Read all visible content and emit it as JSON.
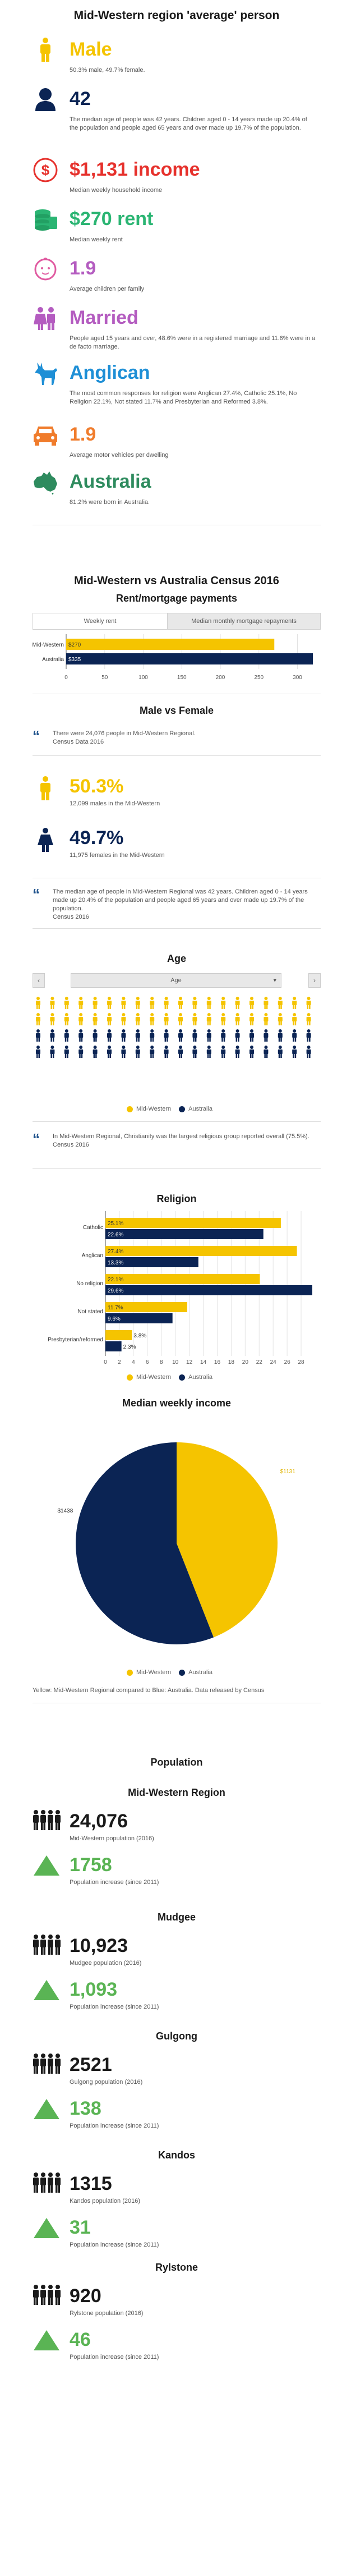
{
  "colors": {
    "yellow": "#f5c400",
    "navy": "#0b2454",
    "red": "#e6312c",
    "green": "#2bb573",
    "purple": "#b45cc0",
    "pink": "#e05aa0",
    "blue": "#1e8fd6",
    "orange": "#f07c2c",
    "teal": "#2e8b5e",
    "arrow": "#5ab454"
  },
  "persona": {
    "title": "Mid-Western region 'average' person",
    "items": [
      {
        "icon": "male-person-icon",
        "value": "Male",
        "color": "#f5c400",
        "text": "50.3% male, 49.7% female."
      },
      {
        "icon": "person-avatar-icon",
        "value": "42",
        "color": "#0b2454",
        "text": "The median age of people was 42 years. Children aged 0 - 14 years made up 20.4% of the population and people aged 65 years and over made up 19.7% of the population."
      },
      {
        "icon": "dollar-coin-icon",
        "value": "$1,131 income",
        "color": "#e6312c",
        "text": "Median weekly household income"
      },
      {
        "icon": "money-stack-icon",
        "value": "$270 rent",
        "color": "#2bb573",
        "text": "Median weekly rent"
      },
      {
        "icon": "baby-face-icon",
        "value": "1.9",
        "color": "#b45cc0",
        "text": "Average children per family"
      },
      {
        "icon": "couple-icon",
        "value": "Married",
        "color": "#b45cc0",
        "text": "People aged 15 years and over, 48.6% were in a registered marriage and 11.6% were in a de facto marriage."
      },
      {
        "icon": "donkey-icon",
        "value": "Anglican",
        "color": "#1e8fd6",
        "text": "The most common responses for religion were Anglican 27.4%, Catholic 25.1%, No Religion 22.1%, Not stated 11.7% and Presbyterian and Reformed 3.8%."
      },
      {
        "icon": "car-icon",
        "value": "1.9",
        "color": "#f07c2c",
        "text": "Average motor vehicles per dwelling"
      },
      {
        "icon": "australia-map-icon",
        "value": "Australia",
        "color": "#2e8b5e",
        "text": "81.2% were born in Australia."
      }
    ]
  },
  "census": {
    "title": "Mid-Western vs Australia Census 2016",
    "rent_title": "Rent/mortgage payments",
    "tabs": [
      "Weekly rent",
      "Median monthly mortgage repayments"
    ]
  },
  "rent_chart": {
    "chart_data": {
      "type": "bar",
      "categories": [
        "Mid-Western",
        "Australia"
      ],
      "values": [
        270,
        335
      ],
      "labels": [
        "$270",
        "$335"
      ],
      "xlim": [
        0,
        320
      ],
      "ticks": [
        "0",
        "50",
        "100",
        "150",
        "200",
        "250",
        "300"
      ]
    }
  },
  "male_female": {
    "title": "Male vs Female",
    "quote": "There were 24,076 people in Mid-Western Regional.",
    "quote_source": "Census Data 2016",
    "male_value": "50.3%",
    "male_label": "12,099 males in the Mid-Western",
    "female_value": "49.7%",
    "female_label": "11,975 females in the Mid-Western",
    "age_quote": "The median age of people in Mid-Western Regional was 42 years. Children aged 0 - 14 years made up 20.4% of the population and people aged 65 years and over made up 19.7% of the population.",
    "age_source": "Census 2016"
  },
  "age": {
    "title": "Age",
    "select_value": "Age",
    "yellow_people": 40,
    "navy_people": 40,
    "legend": [
      "Mid-Western",
      "Australia"
    ]
  },
  "religion_quote": {
    "text": "In Mid-Western Regional, Christianity was the largest religious group reported overall (75.5%).",
    "source": "Census 2016"
  },
  "religion": {
    "title": "Religion",
    "chart_data": {
      "type": "bar",
      "categories": [
        "Catholic",
        "Anglican",
        "No religion",
        "Not stated",
        "Presbyterian/reformed"
      ],
      "series": [
        {
          "name": "Mid-Western",
          "values": [
            25.1,
            27.4,
            22.1,
            11.7,
            3.8
          ],
          "labels": [
            "25.1%",
            "27.4%",
            "22.1%",
            "11.7%",
            "3.8%"
          ]
        },
        {
          "name": "Australia",
          "values": [
            22.6,
            13.3,
            29.6,
            9.6,
            2.3
          ],
          "labels": [
            "22.6%",
            "13.3%",
            "29.6%",
            "9.6%",
            "2.3%"
          ]
        }
      ],
      "xlim": [
        0,
        30
      ],
      "ticks": [
        "0",
        "2",
        "4",
        "6",
        "8",
        "10",
        "12",
        "14",
        "16",
        "18",
        "20",
        "22",
        "24",
        "26",
        "28"
      ]
    }
  },
  "income": {
    "title": "Median weekly income",
    "chart_data": {
      "type": "pie",
      "categories": [
        "Mid-Western",
        "Australia"
      ],
      "values": [
        1131,
        1438
      ],
      "labels": [
        "$1131",
        "$1438"
      ]
    },
    "legend": [
      "Mid-Western",
      "Australia"
    ],
    "note": "Yellow: Mid-Western Regional compared to Blue: Australia. Data released by Census"
  },
  "population": {
    "title": "Population",
    "regions": [
      {
        "name": "Mid-Western Region",
        "pop": "24,076",
        "pop_label": "Mid-Western population (2016)",
        "inc": "1758",
        "inc_label": "Population increase (since 2011)"
      },
      {
        "name": "Mudgee",
        "pop": "10,923",
        "pop_label": "Mudgee population (2016)",
        "inc": "1,093",
        "inc_label": "Population increase (since 2011)"
      },
      {
        "name": "Gulgong",
        "pop": "2521",
        "pop_label": "Gulgong population (2016)",
        "inc": "138",
        "inc_label": "Population increase (since 2011)"
      },
      {
        "name": "Kandos",
        "pop": "1315",
        "pop_label": "Kandos population (2016)",
        "inc": "31",
        "inc_label": "Population increase (since 2011)"
      },
      {
        "name": "Rylstone",
        "pop": "920",
        "pop_label": "Rylstone population (2016)",
        "inc": "46",
        "inc_label": "Population increase (since 2011)"
      }
    ]
  }
}
